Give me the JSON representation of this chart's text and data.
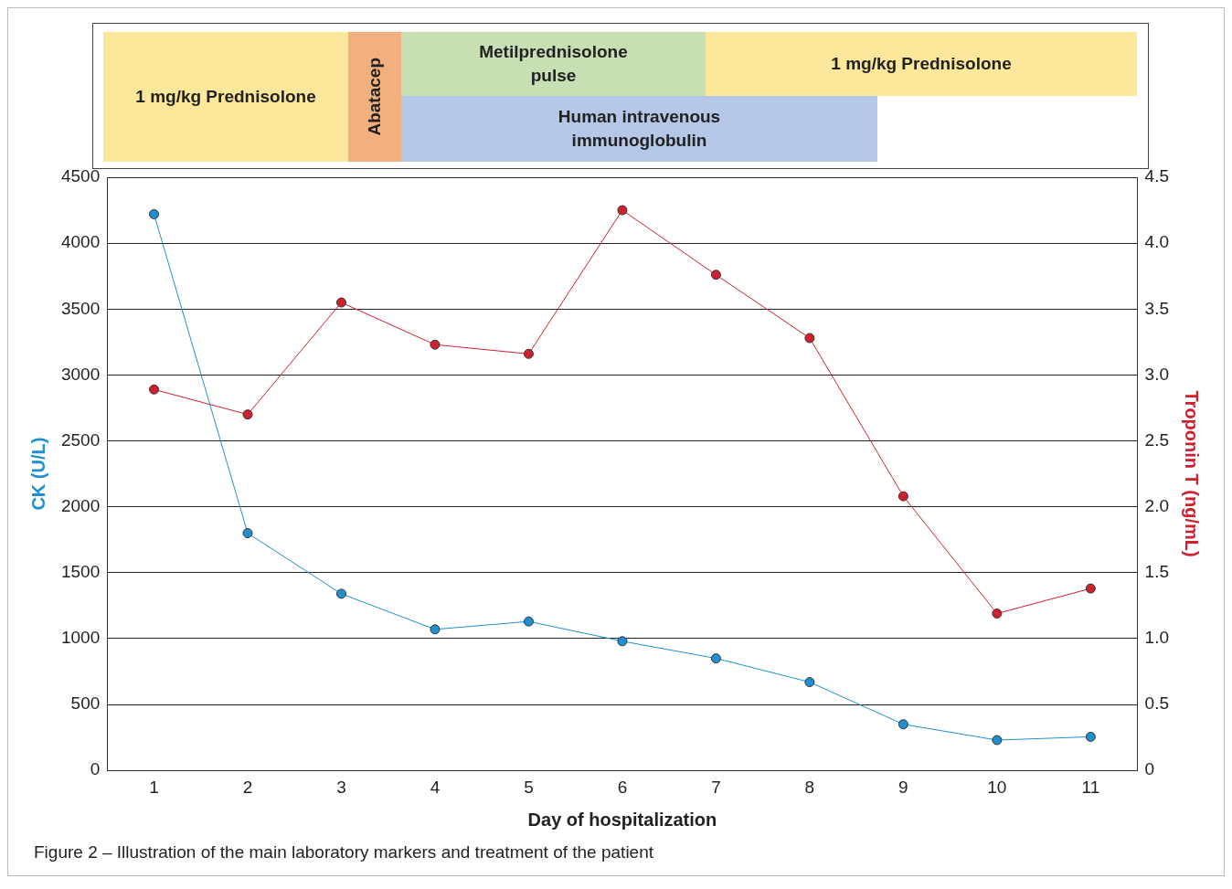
{
  "chart_data": [
    {
      "type": "other",
      "annotations": [
        "1 mg/kg Prednisolone",
        "Abatacep",
        "Metilprednisolone pulse",
        "1 mg/kg Prednisolone",
        "Human intravenous immunoglobulin"
      ]
    },
    {
      "type": "line",
      "xlabel": "Day of hospitalization",
      "ylabel": "CK (U/L)",
      "y2label": "Troponin T (ng/mL)",
      "x": [
        1,
        2,
        3,
        4,
        5,
        6,
        7,
        8,
        9,
        10,
        11
      ],
      "xlim": [
        0.5,
        11.5
      ],
      "xticks": [
        1,
        2,
        3,
        4,
        5,
        6,
        7,
        8,
        9,
        10,
        11
      ],
      "ylim": [
        0,
        4500
      ],
      "yticks": [
        0,
        500,
        1000,
        1500,
        2000,
        2500,
        3000,
        3500,
        4000,
        4500
      ],
      "y2lim": [
        0,
        4.5
      ],
      "y2ticks": [
        0,
        0.5,
        {
          "value": 1,
          "label": "1.0"
        },
        1.5,
        {
          "value": 2,
          "label": "2.0"
        },
        2.5,
        {
          "value": 3,
          "label": "3.0"
        },
        3.5,
        {
          "value": 4,
          "label": "4.0"
        },
        4.5
      ],
      "series": [
        {
          "color": "#1f8fd0",
          "values": [
            4220,
            1800,
            1340,
            1070,
            1130,
            980,
            850,
            670,
            350,
            230,
            255
          ]
        },
        {
          "color": "#d0202e",
          "axis": "y2",
          "values": [
            2.89,
            2.7,
            3.55,
            3.23,
            3.16,
            4.25,
            3.76,
            3.28,
            2.08,
            1.19,
            1.38
          ]
        }
      ],
      "grid": "y",
      "marker": "circle",
      "line_style": "solid",
      "annotations": [
        "Figure 2 – Illustration of the main laboratory markers and treatment of the patient"
      ]
    }
  ]
}
